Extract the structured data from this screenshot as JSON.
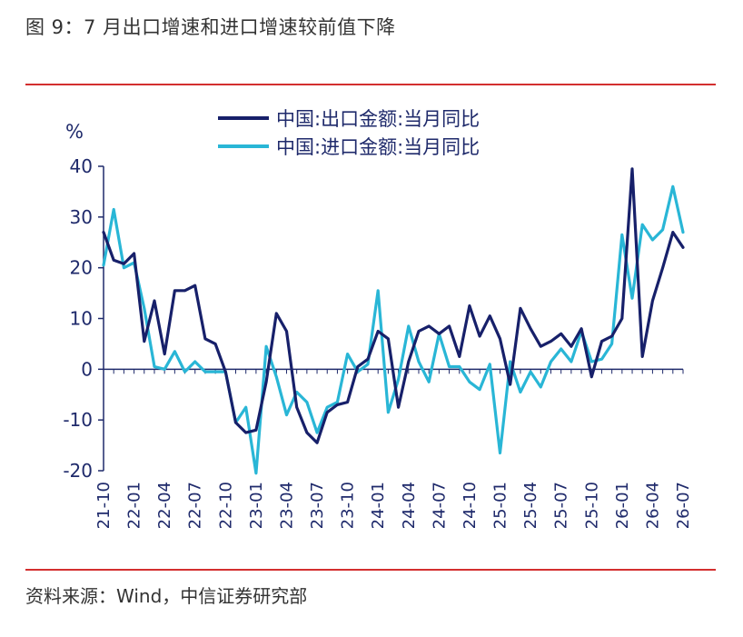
{
  "figure": {
    "title": "图 9：7 月出口增速和进口增速较前值下降",
    "source": "资料来源：Wind，中信证券研究部"
  },
  "colors": {
    "rule": "#d32f2f",
    "export_line": "#17206a",
    "import_line": "#29b6d6",
    "axis": "#1f2a6b"
  },
  "chart_data": {
    "type": "line",
    "ylabel": "%",
    "ylim": [
      -20,
      40
    ],
    "yticks": [
      -20,
      -10,
      0,
      10,
      20,
      30,
      40
    ],
    "x": [
      "21-10",
      "21-11",
      "21-12",
      "22-01",
      "22-02",
      "22-03",
      "22-04",
      "22-05",
      "22-06",
      "22-07",
      "22-08",
      "22-09",
      "22-10",
      "22-11",
      "22-12",
      "23-01",
      "23-02",
      "23-03",
      "23-04",
      "23-05",
      "23-06",
      "23-07",
      "23-08",
      "23-09",
      "23-10",
      "23-11",
      "23-12",
      "24-01",
      "24-02",
      "24-03",
      "24-04",
      "24-05",
      "24-06",
      "24-07",
      "24-08",
      "24-09",
      "24-10",
      "24-11",
      "24-12",
      "25-01",
      "25-02",
      "25-03",
      "25-04",
      "25-05",
      "25-06",
      "25-07",
      "25-08",
      "25-09",
      "25-10",
      "25-11",
      "25-12",
      "26-01",
      "26-02",
      "26-03",
      "26-04",
      "26-05",
      "26-06",
      "26-07"
    ],
    "xticks": [
      "21-10",
      "22-01",
      "22-04",
      "22-07",
      "22-10",
      "23-01",
      "23-04",
      "23-07",
      "23-10",
      "24-01",
      "24-04",
      "24-07",
      "24-10",
      "25-01",
      "25-04",
      "25-07",
      "25-10",
      "26-01",
      "26-04",
      "26-07"
    ],
    "legend_position": "top",
    "grid": false,
    "series": [
      {
        "name": "中国:出口金额:当月同比",
        "color": "#17206a",
        "values": [
          27.0,
          21.5,
          20.8,
          22.8,
          5.5,
          13.5,
          3.0,
          15.5,
          15.5,
          16.5,
          6.0,
          5.0,
          -0.5,
          -10.5,
          -12.5,
          -12.0,
          -2.5,
          11.0,
          7.5,
          -7.5,
          -12.5,
          -14.5,
          -8.5,
          -7.0,
          -6.5,
          0.5,
          2.0,
          7.5,
          6.0,
          -7.5,
          1.5,
          7.5,
          8.5,
          7.0,
          8.5,
          2.5,
          12.5,
          6.5,
          10.5,
          6.0,
          -3.0,
          12.0,
          8.0,
          4.5,
          5.5,
          7.0,
          4.5,
          8.0,
          -1.5,
          5.5,
          6.5,
          10.0,
          39.5,
          2.5,
          13.5,
          20.0,
          27.0,
          24.0
        ]
      },
      {
        "name": "中国:进口金额:当月同比",
        "color": "#29b6d6",
        "values": [
          20.5,
          31.5,
          20.0,
          21.0,
          12.0,
          0.5,
          0.0,
          3.5,
          -0.5,
          1.5,
          -0.5,
          -0.5,
          -0.5,
          -10.5,
          -7.5,
          -20.5,
          4.5,
          -1.5,
          -9.0,
          -4.5,
          -6.5,
          -12.5,
          -7.5,
          -6.5,
          3.0,
          -0.5,
          1.0,
          15.5,
          -8.5,
          -2.0,
          8.5,
          1.5,
          -2.5,
          7.0,
          0.5,
          0.5,
          -2.5,
          -4.0,
          1.0,
          -16.5,
          1.5,
          -4.5,
          -0.5,
          -3.5,
          1.5,
          4.0,
          1.5,
          7.5,
          1.5,
          2.0,
          5.0,
          26.5,
          14.0,
          28.5,
          25.5,
          27.5,
          36.0,
          27.0
        ]
      }
    ]
  }
}
